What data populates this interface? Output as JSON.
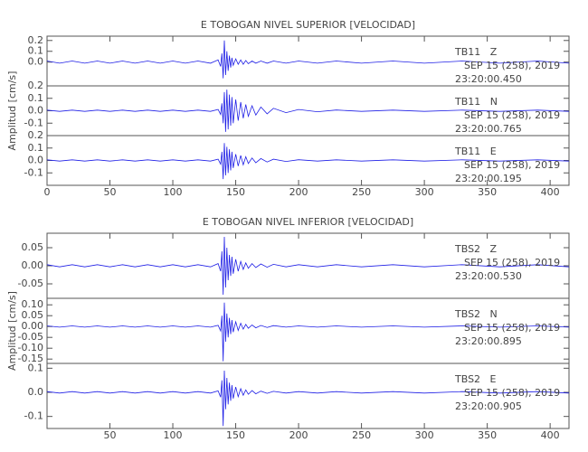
{
  "chart_data": [
    {
      "type": "line",
      "title": "E TOBOGAN NIVEL SUPERIOR [VELOCIDAD]",
      "ylabel": "Amplitud [cm/s]",
      "xlim": [
        0,
        415
      ],
      "xticks": [
        0,
        50,
        100,
        150,
        200,
        250,
        300,
        350,
        400
      ],
      "x": [
        0,
        10,
        20,
        30,
        40,
        50,
        60,
        70,
        80,
        90,
        100,
        110,
        120,
        130,
        136,
        138,
        139,
        140,
        141,
        142,
        143,
        144,
        145,
        146,
        147,
        148,
        150,
        152,
        154,
        156,
        158,
        160,
        163,
        166,
        170,
        175,
        180,
        190,
        200,
        215,
        230,
        250,
        275,
        300,
        330,
        360,
        390,
        415
      ],
      "panels": [
        {
          "label": "TB11   Z",
          "date": "SEP 15 (258), 2019",
          "time": "23:20:00.450",
          "color": "#1f1fe6",
          "ylim": [
            -0.22,
            0.24
          ],
          "yticks": [
            {
              "value": 0,
              "label": "0.0"
            },
            0.1,
            0.2
          ],
          "values": [
            0.01,
            -0.01,
            0.01,
            -0.01,
            0.01,
            -0.01,
            0.01,
            -0.01,
            0.01,
            -0.01,
            0.01,
            -0.01,
            0.01,
            -0.01,
            0.02,
            -0.04,
            0.08,
            -0.15,
            0.2,
            -0.12,
            0.1,
            -0.08,
            0.06,
            -0.05,
            0.04,
            -0.03,
            0.03,
            -0.02,
            0.02,
            -0.02,
            0.015,
            -0.015,
            0.01,
            -0.01,
            0.01,
            -0.01,
            0.01,
            -0.01,
            0.01,
            -0.01,
            0.01,
            -0.01,
            0.01,
            -0.01,
            0.01,
            -0.01,
            0.01,
            -0.01
          ]
        },
        {
          "label": "TB11   N",
          "date": "SEP 15 (258), 2019",
          "time": "23:20:00.765",
          "color": "#1f1fe6",
          "ylim": [
            -0.2,
            0.2
          ],
          "yticks": [
            -0.1,
            {
              "value": 0,
              "label": "0.0"
            },
            0.1,
            0.2
          ],
          "values": [
            0.005,
            -0.005,
            0.005,
            -0.005,
            0.005,
            -0.005,
            0.005,
            -0.005,
            0.005,
            -0.005,
            0.005,
            -0.005,
            0.005,
            -0.005,
            0.01,
            -0.03,
            0.06,
            -0.1,
            0.15,
            -0.17,
            0.17,
            -0.15,
            0.13,
            -0.12,
            0.11,
            -0.1,
            0.09,
            -0.08,
            0.07,
            -0.06,
            0.05,
            -0.045,
            0.04,
            -0.035,
            0.03,
            -0.025,
            0.02,
            -0.015,
            0.01,
            -0.008,
            0.006,
            -0.005,
            0.005,
            -0.005,
            0.005,
            -0.005,
            0.005,
            -0.005
          ]
        },
        {
          "label": "TB11   E",
          "date": "SEP 15 (258), 2019",
          "time": "23:20:00.195",
          "color": "#1f1fe6",
          "ylim": [
            -0.2,
            0.2
          ],
          "yticks": [
            -0.1,
            {
              "value": 0,
              "label": "0.0"
            },
            0.1,
            0.2
          ],
          "values": [
            0.005,
            -0.005,
            0.005,
            -0.005,
            0.005,
            -0.005,
            0.005,
            -0.005,
            0.005,
            -0.005,
            0.005,
            -0.005,
            0.005,
            -0.005,
            0.01,
            -0.03,
            0.07,
            -0.15,
            0.14,
            -0.12,
            0.11,
            -0.1,
            0.09,
            -0.08,
            0.07,
            -0.06,
            0.05,
            -0.045,
            0.04,
            -0.035,
            0.03,
            -0.025,
            0.02,
            -0.018,
            0.015,
            -0.012,
            0.01,
            -0.008,
            0.006,
            -0.005,
            0.005,
            -0.005,
            0.005,
            -0.005,
            0.005,
            -0.005,
            0.005,
            -0.005
          ]
        }
      ]
    },
    {
      "type": "line",
      "title": "E TOBOGAN NIVEL INFERIOR [VELOCIDAD]",
      "ylabel": "Amplitud [cm/s]",
      "xlim": [
        0,
        415
      ],
      "xticks": [
        50,
        100,
        150,
        200,
        250,
        300,
        350,
        400
      ],
      "x": [
        0,
        10,
        20,
        30,
        40,
        50,
        60,
        70,
        80,
        90,
        100,
        110,
        120,
        130,
        136,
        138,
        139,
        140,
        141,
        142,
        143,
        144,
        145,
        146,
        147,
        148,
        150,
        152,
        154,
        156,
        158,
        160,
        163,
        166,
        170,
        175,
        180,
        190,
        200,
        215,
        230,
        250,
        275,
        300,
        330,
        360,
        390,
        415
      ],
      "panels": [
        {
          "label": "TBS2   Z",
          "date": "SEP 15 (258), 2019",
          "time": "23:20:00.530",
          "color": "#1f1fe6",
          "ylim": [
            -0.09,
            0.09
          ],
          "yticks": [
            -0.05,
            {
              "value": 0,
              "label": "0.00"
            },
            0.05
          ],
          "values": [
            0.003,
            -0.003,
            0.003,
            -0.003,
            0.003,
            -0.003,
            0.003,
            -0.003,
            0.003,
            -0.003,
            0.003,
            -0.003,
            0.003,
            -0.003,
            0.006,
            -0.015,
            0.04,
            -0.08,
            0.08,
            -0.06,
            0.05,
            -0.04,
            0.03,
            -0.028,
            0.025,
            -0.022,
            0.018,
            -0.015,
            0.012,
            -0.01,
            0.008,
            -0.007,
            0.006,
            -0.005,
            0.005,
            -0.004,
            0.004,
            -0.003,
            0.003,
            -0.003,
            0.003,
            -0.003,
            0.003,
            -0.003,
            0.003,
            -0.003,
            0.003,
            -0.003
          ]
        },
        {
          "label": "TBS2   N",
          "date": "SEP 15 (258), 2019",
          "time": "23:20:00.895",
          "color": "#1f1fe6",
          "ylim": [
            -0.17,
            0.13
          ],
          "yticks": [
            {
              "value": -0.15,
              "label": "-0.15"
            },
            {
              "value": -0.1,
              "label": "-0.10"
            },
            -0.05,
            {
              "value": 0,
              "label": "0.00"
            },
            0.05,
            {
              "value": 0.1,
              "label": "0.10"
            }
          ],
          "values": [
            0.003,
            -0.003,
            0.003,
            -0.003,
            0.003,
            -0.003,
            0.003,
            -0.003,
            0.003,
            -0.003,
            0.003,
            -0.003,
            0.003,
            -0.003,
            0.006,
            -0.02,
            0.05,
            -0.16,
            0.11,
            -0.07,
            0.06,
            -0.05,
            0.04,
            -0.035,
            0.03,
            -0.026,
            0.022,
            -0.018,
            0.015,
            -0.012,
            0.01,
            -0.008,
            0.007,
            -0.006,
            0.005,
            -0.004,
            0.004,
            -0.003,
            0.003,
            -0.003,
            0.003,
            -0.003,
            0.003,
            -0.003,
            0.003,
            -0.003,
            0.003,
            -0.003
          ]
        },
        {
          "label": "TBS2   E",
          "date": "SEP 15 (258), 2019",
          "time": "23:20:00.905",
          "color": "#1f1fe6",
          "ylim": [
            -0.15,
            0.12
          ],
          "yticks": [
            -0.1,
            {
              "value": 0,
              "label": "0.0"
            },
            0.1
          ],
          "values": [
            0.003,
            -0.003,
            0.003,
            -0.003,
            0.003,
            -0.003,
            0.003,
            -0.003,
            0.003,
            -0.003,
            0.003,
            -0.003,
            0.003,
            -0.003,
            0.006,
            -0.02,
            0.05,
            -0.14,
            0.09,
            -0.07,
            0.06,
            -0.05,
            0.04,
            -0.035,
            0.03,
            -0.026,
            0.022,
            -0.018,
            0.015,
            -0.012,
            0.01,
            -0.008,
            0.007,
            -0.006,
            0.005,
            -0.004,
            0.004,
            -0.003,
            0.003,
            -0.003,
            0.003,
            -0.003,
            0.003,
            -0.003,
            0.003,
            -0.003,
            0.003,
            -0.003
          ]
        }
      ]
    }
  ]
}
